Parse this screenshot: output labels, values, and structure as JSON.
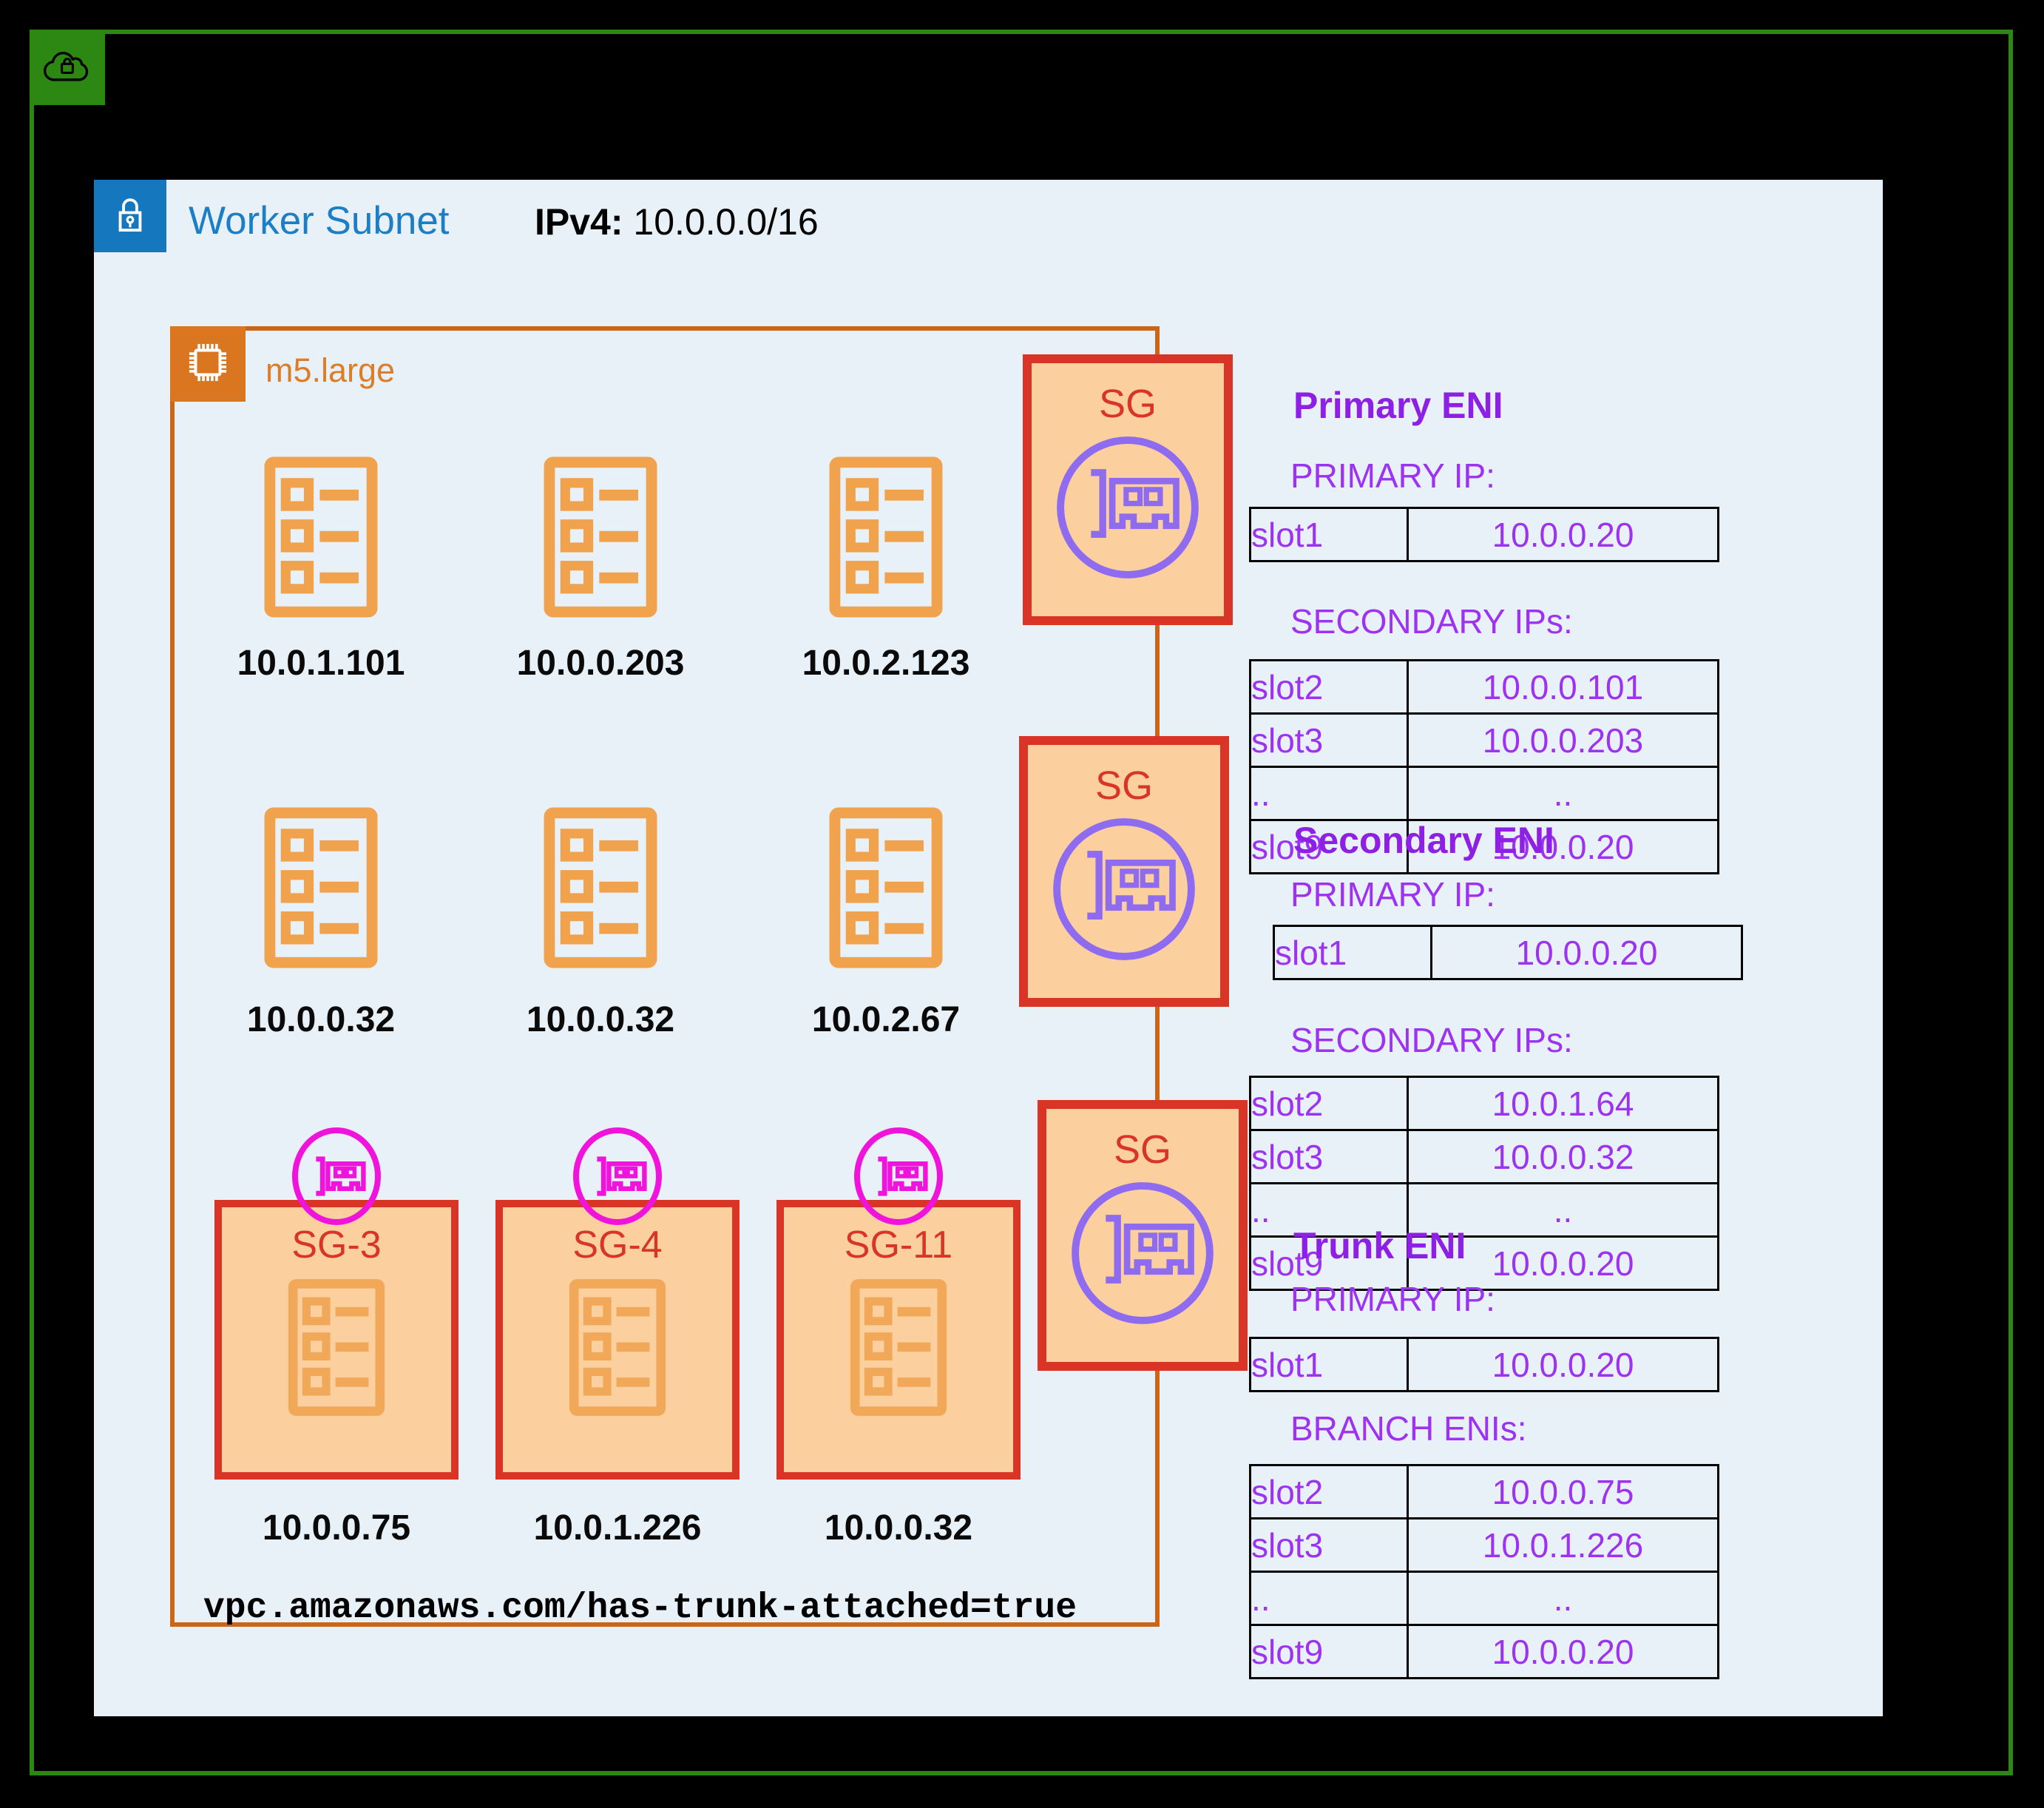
{
  "vpc": {
    "icon": "cloud-lock-icon"
  },
  "subnet": {
    "icon": "lock-icon",
    "title": "Worker Subnet",
    "cidr_label": "IPv4:",
    "cidr_value": "10.0.0.0/16"
  },
  "instance": {
    "icon": "chip-icon",
    "type_label": "m5.large",
    "annotation": "vpc.amazonaws.com/has-trunk-attached=true",
    "pod_rows": [
      [
        "10.0.1.101",
        "10.0.0.203",
        "10.0.2.123"
      ],
      [
        "10.0.0.32",
        "10.0.0.32",
        "10.0.2.67"
      ]
    ],
    "branch_pods": [
      {
        "sg": "SG-3",
        "ip": "10.0.0.75"
      },
      {
        "sg": "SG-4",
        "ip": "10.0.1.226"
      },
      {
        "sg": "SG-11",
        "ip": "10.0.0.32"
      }
    ],
    "sg_nodes": [
      "SG",
      "SG",
      "SG"
    ]
  },
  "eni_sections": [
    {
      "title": "Primary ENI",
      "groups": [
        {
          "heading": "PRIMARY IP:",
          "rows": [
            [
              "slot1",
              "10.0.0.20"
            ]
          ]
        },
        {
          "heading": "SECONDARY IPs:",
          "rows": [
            [
              "slot2",
              "10.0.0.101"
            ],
            [
              "slot3",
              "10.0.0.203"
            ],
            [
              "..",
              ".."
            ],
            [
              "slot9",
              "10.0.0.20"
            ]
          ]
        }
      ]
    },
    {
      "title": "Secondary ENI",
      "groups": [
        {
          "heading": "PRIMARY IP:",
          "rows": [
            [
              "slot1",
              "10.0.0.20"
            ]
          ]
        },
        {
          "heading": "SECONDARY IPs:",
          "rows": [
            [
              "slot2",
              "10.0.1.64"
            ],
            [
              "slot3",
              "10.0.0.32"
            ],
            [
              "..",
              ".."
            ],
            [
              "slot9",
              "10.0.0.20"
            ]
          ]
        }
      ]
    },
    {
      "title": "Trunk ENI",
      "groups": [
        {
          "heading": "PRIMARY IP:",
          "rows": [
            [
              "slot1",
              "10.0.0.20"
            ]
          ]
        },
        {
          "heading": "BRANCH ENIs:",
          "rows": [
            [
              "slot2",
              "10.0.0.75"
            ],
            [
              "slot3",
              "10.0.1.226"
            ],
            [
              "..",
              ".."
            ],
            [
              "slot9",
              "10.0.0.20"
            ]
          ]
        }
      ]
    }
  ],
  "icons": {
    "pod": "list-document-icon",
    "eni": "network-card-icon"
  },
  "colors": {
    "vpc_green": "#2d8713",
    "panel_bg": "#e8f1f8",
    "subnet_badge_blue": "#1578be",
    "subnet_title_blue": "#1c7fc5",
    "instance_orange": "#c8661a",
    "chip_orange": "#d9761f",
    "instance_label_orange": "#dc7e28",
    "doc_orange": "#f0a24d",
    "sg_fill": "#fbcf9e",
    "sg_red": "#d93527",
    "eni_icon_purple": "#8f6bf0",
    "eni_title_purple": "#8e1fe4",
    "eni_text_purple": "#9d32f2",
    "branch_pink": "#f013dc"
  }
}
